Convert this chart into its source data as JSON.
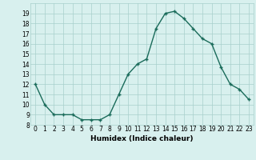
{
  "x": [
    0,
    1,
    2,
    3,
    4,
    5,
    6,
    7,
    8,
    9,
    10,
    11,
    12,
    13,
    14,
    15,
    16,
    17,
    18,
    19,
    20,
    21,
    22,
    23
  ],
  "y": [
    12,
    10,
    9,
    9,
    9,
    8.5,
    8.5,
    8.5,
    9,
    11,
    13,
    14,
    14.5,
    17.5,
    19,
    19.2,
    18.5,
    17.5,
    16.5,
    16,
    13.7,
    12,
    11.5,
    10.5
  ],
  "line_color": "#1a6b5a",
  "marker": "+",
  "bg_color": "#d8f0ee",
  "grid_color": "#a8d0cc",
  "xlabel": "Humidex (Indice chaleur)",
  "xlim": [
    -0.5,
    23.5
  ],
  "ylim": [
    8,
    20
  ],
  "yticks": [
    8,
    9,
    10,
    11,
    12,
    13,
    14,
    15,
    16,
    17,
    18,
    19
  ],
  "xticks": [
    0,
    1,
    2,
    3,
    4,
    5,
    6,
    7,
    8,
    9,
    10,
    11,
    12,
    13,
    14,
    15,
    16,
    17,
    18,
    19,
    20,
    21,
    22,
    23
  ],
  "tick_fontsize": 5.5,
  "label_fontsize": 6.5,
  "marker_size": 3,
  "linewidth": 1.0
}
